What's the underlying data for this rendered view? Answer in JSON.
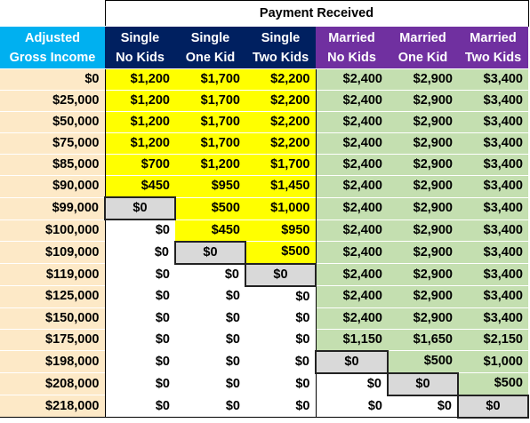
{
  "table": {
    "title": "Payment Received",
    "headers": [
      {
        "line1": "Adjusted",
        "line2": "Gross Income",
        "group": "agi"
      },
      {
        "line1": "Single",
        "line2": "No Kids",
        "group": "single"
      },
      {
        "line1": "Single",
        "line2": "One Kid",
        "group": "single"
      },
      {
        "line1": "Single",
        "line2": "Two Kids",
        "group": "single"
      },
      {
        "line1": "Married",
        "line2": "No Kids",
        "group": "married"
      },
      {
        "line1": "Married",
        "line2": "One Kid",
        "group": "married"
      },
      {
        "line1": "Married",
        "line2": "Two Kids",
        "group": "married"
      }
    ],
    "rows": [
      [
        "$0",
        "$1,200",
        "$1,700",
        "$2,200",
        "$2,400",
        "$2,900",
        "$3,400"
      ],
      [
        "$25,000",
        "$1,200",
        "$1,700",
        "$2,200",
        "$2,400",
        "$2,900",
        "$3,400"
      ],
      [
        "$50,000",
        "$1,200",
        "$1,700",
        "$2,200",
        "$2,400",
        "$2,900",
        "$3,400"
      ],
      [
        "$75,000",
        "$1,200",
        "$1,700",
        "$2,200",
        "$2,400",
        "$2,900",
        "$3,400"
      ],
      [
        "$85,000",
        "$700",
        "$1,200",
        "$1,700",
        "$2,400",
        "$2,900",
        "$3,400"
      ],
      [
        "$90,000",
        "$450",
        "$950",
        "$1,450",
        "$2,400",
        "$2,900",
        "$3,400"
      ],
      [
        "$99,000",
        "$0",
        "$500",
        "$1,000",
        "$2,400",
        "$2,900",
        "$3,400"
      ],
      [
        "$100,000",
        "$0",
        "$450",
        "$950",
        "$2,400",
        "$2,900",
        "$3,400"
      ],
      [
        "$109,000",
        "$0",
        "$0",
        "$500",
        "$2,400",
        "$2,900",
        "$3,400"
      ],
      [
        "$119,000",
        "$0",
        "$0",
        "$0",
        "$2,400",
        "$2,900",
        "$3,400"
      ],
      [
        "$125,000",
        "$0",
        "$0",
        "$0",
        "$2,400",
        "$2,900",
        "$3,400"
      ],
      [
        "$150,000",
        "$0",
        "$0",
        "$0",
        "$2,400",
        "$2,900",
        "$3,400"
      ],
      [
        "$175,000",
        "$0",
        "$0",
        "$0",
        "$1,150",
        "$1,650",
        "$2,150"
      ],
      [
        "$198,000",
        "$0",
        "$0",
        "$0",
        "$0",
        "$500",
        "$1,000"
      ],
      [
        "$208,000",
        "$0",
        "$0",
        "$0",
        "$0",
        "$0",
        "$500"
      ],
      [
        "$218,000",
        "$0",
        "$0",
        "$0",
        "$0",
        "$0",
        "$0"
      ]
    ],
    "cell_styles": [
      [
        "agi",
        "yellow",
        "yellow",
        "yellow",
        "green",
        "green",
        "green"
      ],
      [
        "agi",
        "yellow",
        "yellow",
        "yellow",
        "green",
        "green",
        "green"
      ],
      [
        "agi",
        "yellow",
        "yellow",
        "yellow",
        "green",
        "green",
        "green"
      ],
      [
        "agi",
        "yellow",
        "yellow",
        "yellow",
        "green",
        "green",
        "green"
      ],
      [
        "agi",
        "yellow",
        "yellow",
        "yellow",
        "green",
        "green",
        "green"
      ],
      [
        "agi",
        "yellow",
        "yellow",
        "yellow",
        "green",
        "green",
        "green"
      ],
      [
        "agi",
        "gray",
        "yellow",
        "yellow",
        "green",
        "green",
        "green"
      ],
      [
        "agi",
        "white",
        "yellow",
        "yellow",
        "green",
        "green",
        "green"
      ],
      [
        "agi",
        "white",
        "gray",
        "yellow",
        "green",
        "green",
        "green"
      ],
      [
        "agi",
        "white",
        "white",
        "gray",
        "green",
        "green",
        "green"
      ],
      [
        "agi",
        "white",
        "white",
        "white",
        "green",
        "green",
        "green"
      ],
      [
        "agi",
        "white",
        "white",
        "white",
        "green",
        "green",
        "green"
      ],
      [
        "agi",
        "white",
        "white",
        "white",
        "green",
        "green",
        "green"
      ],
      [
        "agi",
        "white",
        "white",
        "white",
        "gray",
        "green",
        "green"
      ],
      [
        "agi",
        "white",
        "white",
        "white",
        "white",
        "gray",
        "green"
      ],
      [
        "agi",
        "white",
        "white",
        "white",
        "white",
        "white",
        "gray"
      ]
    ],
    "colors": {
      "agi_header": "#00b0f0",
      "single_header": "#002060",
      "married_header": "#7030a0",
      "agi_fill": "#fde9c7",
      "single_fill": "#ffff00",
      "married_fill": "#c4dfb0",
      "zero_transition_fill": "#d9d9d9"
    }
  }
}
